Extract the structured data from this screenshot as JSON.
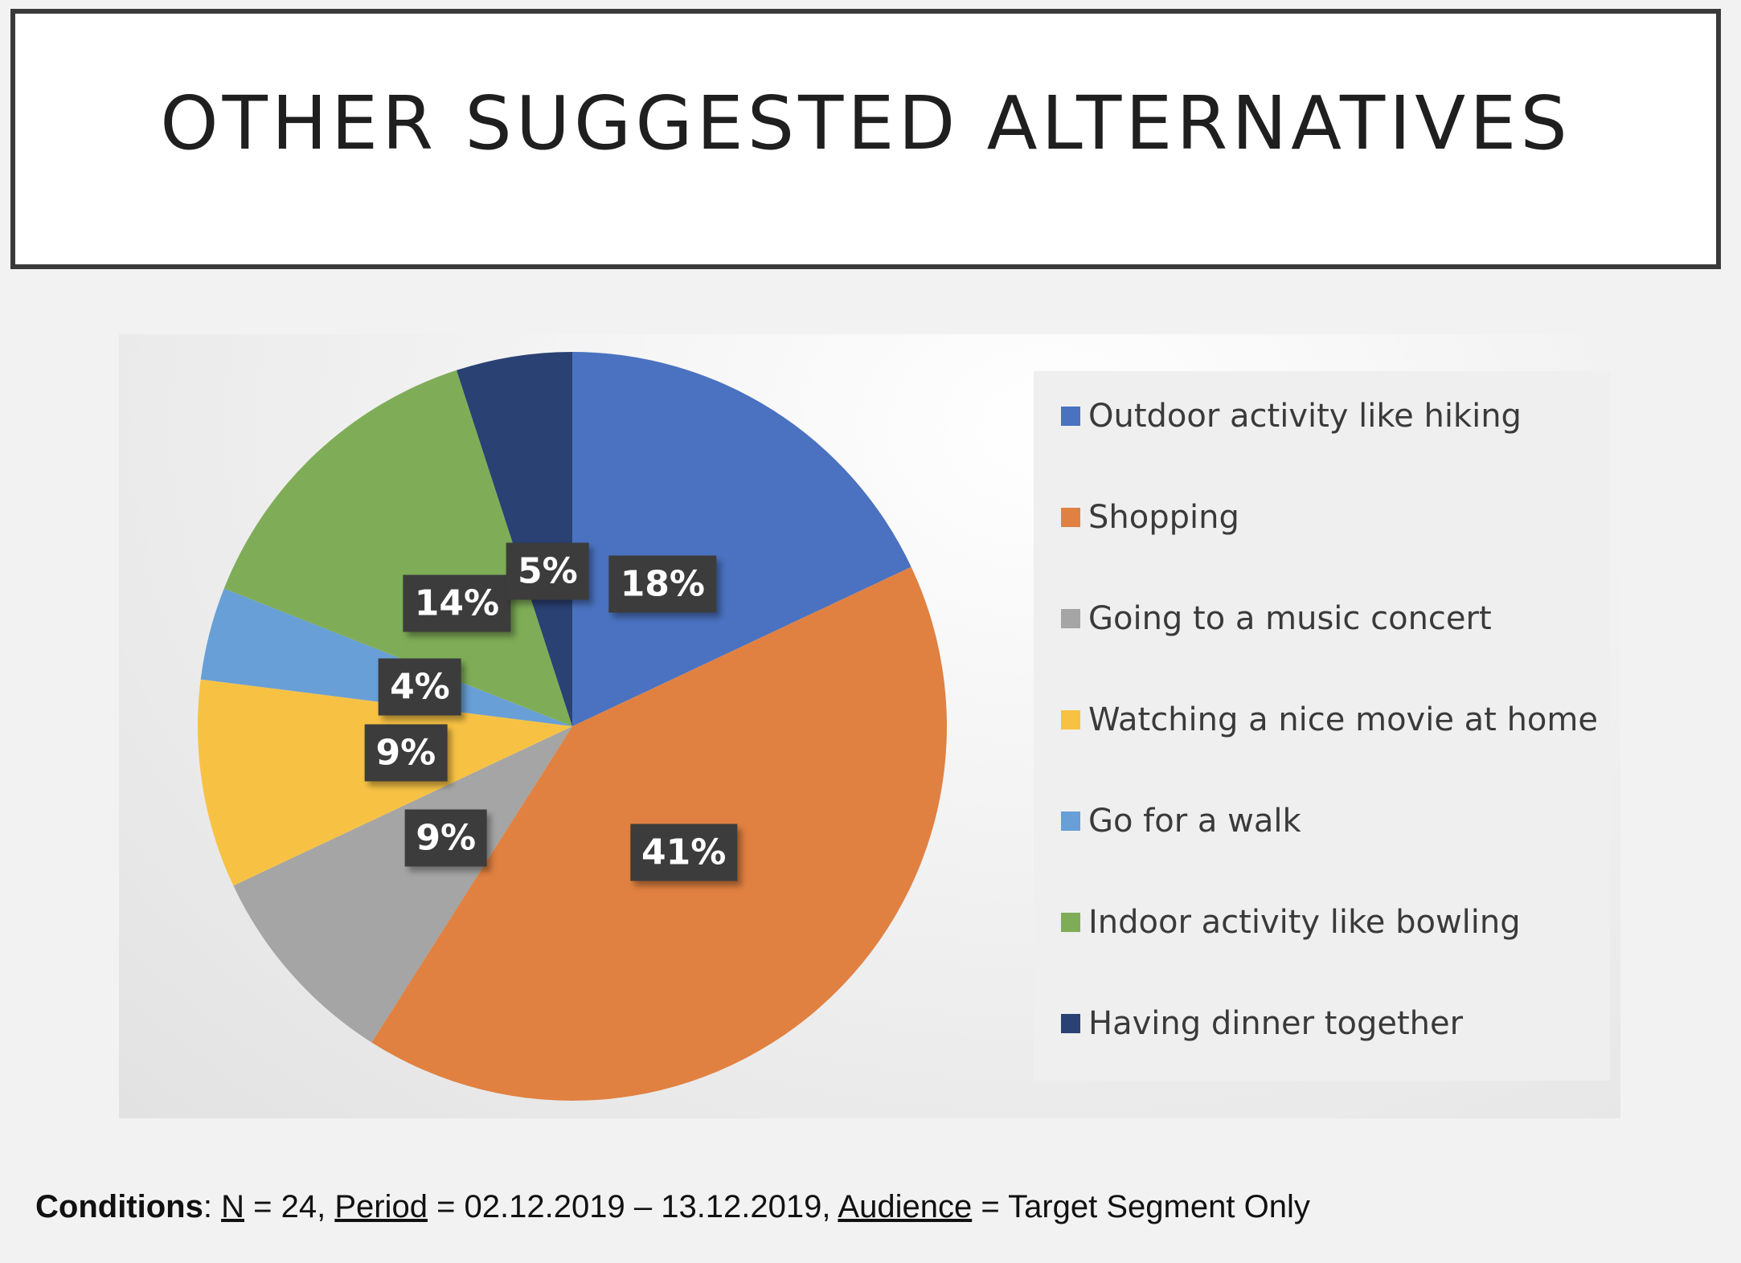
{
  "title": "OTHER SUGGESTED ALTERNATIVES",
  "chart_data": {
    "type": "pie",
    "title": "",
    "categories": [
      "Outdoor activity like hiking",
      "Shopping",
      "Going to a music concert",
      "Watching a nice movie at home",
      "Go for a walk",
      "Indoor activity like bowling",
      "Having dinner together"
    ],
    "values": [
      18,
      41,
      9,
      9,
      4,
      14,
      5
    ],
    "data_labels": [
      "18%",
      "41%",
      "9%",
      "9%",
      "4%",
      "14%",
      "5%"
    ],
    "colors": [
      "#4a72c0",
      "#e08142",
      "#a5a5a5",
      "#f7c244",
      "#689fd6",
      "#7fad57",
      "#2a4173"
    ],
    "legend_position": "right",
    "start_angle": "12 o'clock",
    "direction": "clockwise"
  },
  "conditions": {
    "label": "Conditions",
    "n_label": "N",
    "n_value": "= 24,",
    "period_label": "Period",
    "period_value": "= 02.12.2019 – 13.12.2019,",
    "audience_label": "Audience",
    "audience_value": "= Target Segment Only"
  }
}
